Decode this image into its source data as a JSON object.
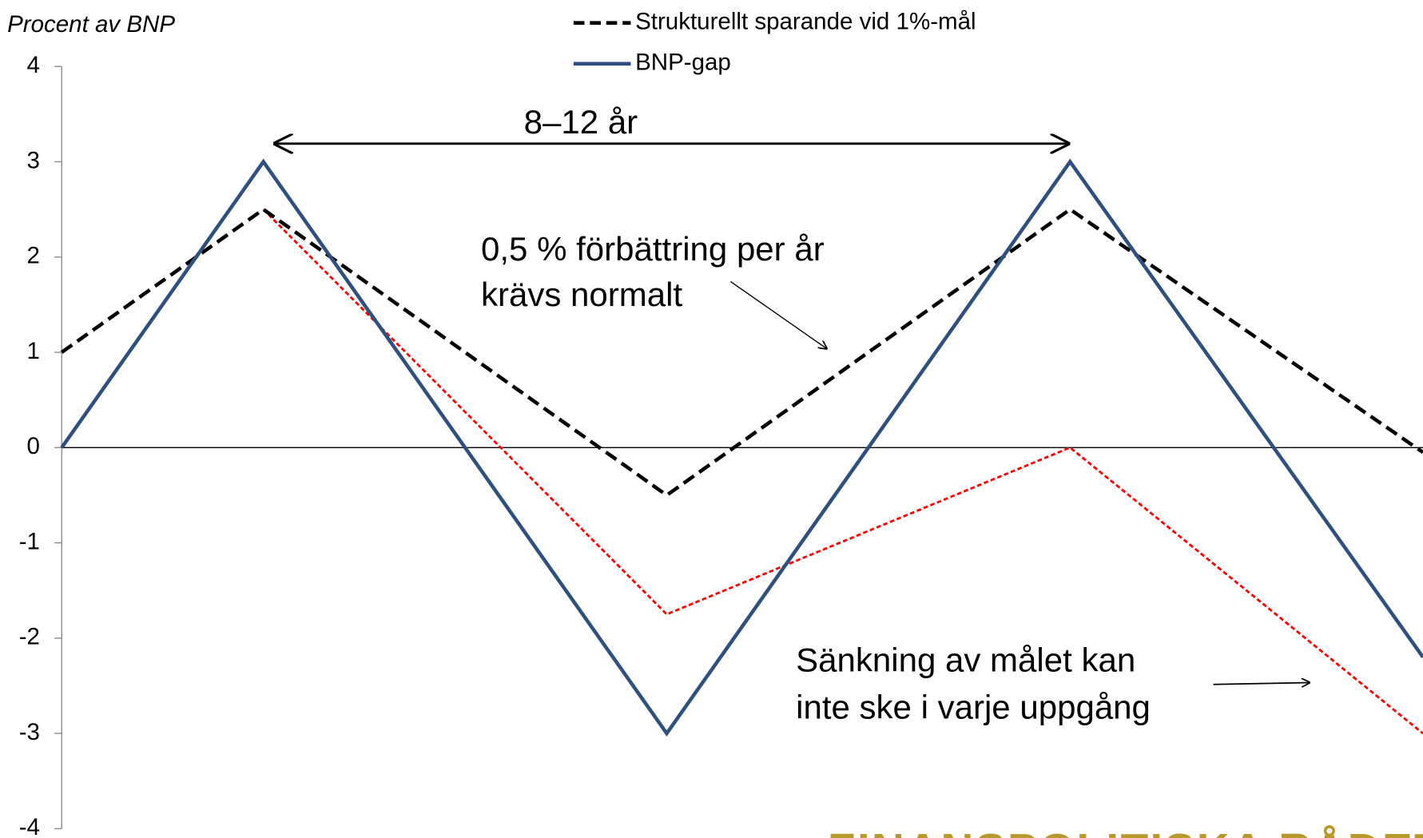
{
  "chart_data": {
    "type": "line",
    "y_label": "Procent av BNP",
    "x": [
      0,
      1,
      3,
      5,
      6.75
    ],
    "xlim": [
      0,
      6.75
    ],
    "ylim": [
      -4,
      4
    ],
    "yticks": [
      -4,
      -3,
      -2,
      -1,
      0,
      1,
      2,
      3,
      4
    ],
    "series": [
      {
        "name": "Strukturellt sparande vid 1%-mål",
        "color": "#000000",
        "dash": "dashed",
        "values": [
          1,
          2.5,
          -0.5,
          2.5,
          -0.05
        ]
      },
      {
        "name": "BNP-gap",
        "color": "#2e4f7f",
        "dash": "solid",
        "values": [
          0,
          3,
          -3,
          3,
          -2.2
        ]
      },
      {
        "color": "#ff0000",
        "dash": "dotted",
        "values": [
          null,
          2.5,
          -1.75,
          0,
          -3
        ]
      }
    ],
    "annotations": [
      "8–12 år",
      "0,5 % förbättring per år",
      "krävs normalt",
      "Sänkning av målet kan",
      "inte ske i varje uppgång"
    ],
    "logo": "FINANSPOLITISKA RÅDET"
  }
}
